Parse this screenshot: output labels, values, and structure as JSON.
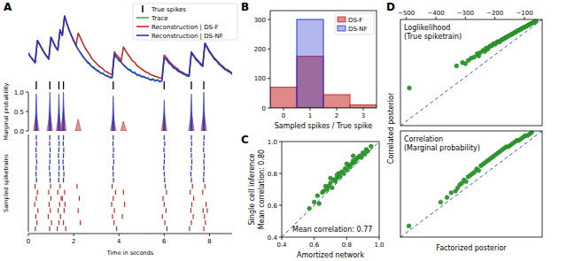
{
  "chart_data": [
    {
      "type": "line",
      "title": "A",
      "x": [
        0,
        0.1,
        0.2,
        0.3,
        0.4,
        0.5,
        0.6,
        0.7,
        0.8,
        0.9,
        1,
        1.1,
        1.2,
        1.3,
        1.4,
        1.5,
        1.6,
        1.7,
        1.8,
        1.9,
        2,
        2.1,
        2.2,
        2.3,
        2.4,
        2.5,
        2.6,
        2.7,
        2.8,
        2.9,
        3,
        3.1,
        3.2,
        3.3,
        3.4,
        3.5,
        3.6,
        3.7,
        3.8,
        3.9,
        4,
        4.1,
        4.2,
        4.3,
        4.4,
        4.5,
        4.6,
        4.7,
        4.8,
        4.9,
        5,
        5.1,
        5.2,
        5.3,
        5.4,
        5.5,
        5.6,
        5.7,
        5.8,
        5.9,
        6,
        6.1,
        6.2,
        6.3,
        6.4,
        6.5,
        6.6,
        6.7,
        6.8,
        6.9,
        7,
        7.1,
        7.2,
        7.3,
        7.4,
        7.5,
        7.6,
        7.7,
        7.8,
        7.9,
        8,
        8.1,
        8.2,
        8.3,
        8.4,
        8.5,
        8.6,
        8.7,
        8.8,
        8.9,
        9
      ],
      "series": [
        {
          "name": "True spikes",
          "color": "#000000",
          "type": "event",
          "x": [
            0.35,
            0.95,
            1.35,
            1.55,
            3.75,
            6.0,
            7.2,
            7.75
          ]
        },
        {
          "name": "Trace",
          "color": "#33bb33",
          "values": [
            0.45,
            0.38,
            0.37,
            0.3,
            0.57,
            0.56,
            0.47,
            0.45,
            0.39,
            0.38,
            0.61,
            0.58,
            0.5,
            0.49,
            0.7,
            0.67,
            0.86,
            0.81,
            0.7,
            0.66,
            0.57,
            0.55,
            0.47,
            0.45,
            0.38,
            0.37,
            0.31,
            0.32,
            0.26,
            0.27,
            0.21,
            0.23,
            0.18,
            0.2,
            0.15,
            0.17,
            0.12,
            0.15,
            0.4,
            0.39,
            0.33,
            0.34,
            0.28,
            0.28,
            0.22,
            0.24,
            0.19,
            0.21,
            0.15,
            0.18,
            0.13,
            0.16,
            0.12,
            0.14,
            0.09,
            0.13,
            0.08,
            0.12,
            0.07,
            0.11,
            0.36,
            0.37,
            0.3,
            0.31,
            0.24,
            0.26,
            0.2,
            0.22,
            0.17,
            0.19,
            0.14,
            0.17,
            0.42,
            0.41,
            0.34,
            0.35,
            0.28,
            0.29,
            0.53,
            0.52,
            0.43,
            0.43,
            0.35,
            0.36,
            0.29,
            0.3,
            0.24,
            0.25,
            0.2,
            0.22,
            0.16
          ]
        },
        {
          "name": "Reconstruction | DS-F",
          "color": "#c62828",
          "values": [
            0.43,
            0.39,
            0.35,
            0.32,
            0.59,
            0.54,
            0.49,
            0.44,
            0.4,
            0.36,
            0.63,
            0.57,
            0.51,
            0.47,
            0.72,
            0.65,
            0.89,
            0.8,
            0.72,
            0.65,
            0.59,
            0.53,
            0.68,
            0.62,
            0.56,
            0.5,
            0.46,
            0.42,
            0.37,
            0.34,
            0.31,
            0.28,
            0.26,
            0.24,
            0.21,
            0.2,
            0.18,
            0.17,
            0.45,
            0.41,
            0.38,
            0.34,
            0.51,
            0.46,
            0.42,
            0.38,
            0.34,
            0.32,
            0.28,
            0.26,
            0.24,
            0.22,
            0.2,
            0.19,
            0.17,
            0.16,
            0.15,
            0.14,
            0.13,
            0.12,
            0.41,
            0.38,
            0.34,
            0.31,
            0.28,
            0.26,
            0.24,
            0.21,
            0.2,
            0.18,
            0.17,
            0.16,
            0.45,
            0.41,
            0.37,
            0.34,
            0.31,
            0.28,
            0.56,
            0.51,
            0.46,
            0.42,
            0.38,
            0.35,
            0.32,
            0.29,
            0.27,
            0.24,
            0.23,
            0.21,
            0.19
          ]
        },
        {
          "name": "Reconstruction | DS-NF",
          "color": "#2233cc",
          "values": [
            0.43,
            0.39,
            0.35,
            0.32,
            0.59,
            0.54,
            0.49,
            0.44,
            0.4,
            0.36,
            0.63,
            0.57,
            0.51,
            0.47,
            0.72,
            0.65,
            0.89,
            0.8,
            0.72,
            0.65,
            0.59,
            0.53,
            0.48,
            0.44,
            0.4,
            0.36,
            0.33,
            0.3,
            0.27,
            0.25,
            0.23,
            0.21,
            0.19,
            0.18,
            0.16,
            0.15,
            0.14,
            0.13,
            0.42,
            0.38,
            0.35,
            0.32,
            0.29,
            0.26,
            0.24,
            0.22,
            0.2,
            0.19,
            0.17,
            0.16,
            0.15,
            0.14,
            0.13,
            0.12,
            0.11,
            0.11,
            0.1,
            0.1,
            0.09,
            0.09,
            0.38,
            0.35,
            0.32,
            0.29,
            0.26,
            0.24,
            0.22,
            0.2,
            0.19,
            0.17,
            0.16,
            0.15,
            0.44,
            0.4,
            0.36,
            0.33,
            0.3,
            0.27,
            0.55,
            0.5,
            0.45,
            0.41,
            0.37,
            0.34,
            0.31,
            0.28,
            0.26,
            0.23,
            0.22,
            0.2,
            0.18
          ]
        }
      ],
      "xlim": [
        0,
        9
      ],
      "ylim": [
        0,
        1
      ],
      "legend": "upper right"
    },
    {
      "type": "area",
      "ylabel": "Marginal probability",
      "series": [
        {
          "name": "DS-F",
          "color": "#c62828",
          "x": [
            0.35,
            0.95,
            1.35,
            1.55,
            2.2,
            3.75,
            4.2,
            6.0,
            7.2,
            7.75
          ],
          "values": [
            0.45,
            0.5,
            0.45,
            0.55,
            0.3,
            0.4,
            0.25,
            0.45,
            0.5,
            0.5
          ]
        },
        {
          "name": "DS-NF",
          "color": "#2233cc",
          "x": [
            0.35,
            0.95,
            1.35,
            1.55,
            3.75,
            6.0,
            7.2,
            7.75
          ],
          "values": [
            0.95,
            1.0,
            0.95,
            1.0,
            0.9,
            0.8,
            0.95,
            1.0
          ]
        }
      ],
      "xlim": [
        0,
        9
      ],
      "ylim": [
        0,
        1
      ],
      "yticks": [
        {
          "value": 0,
          "label": "0.0"
        },
        0.5,
        {
          "value": 1,
          "label": "1.0"
        }
      ]
    },
    {
      "type": "raster",
      "ylabel": "Sampled spiketrains",
      "xlabel": "Time in seconds",
      "series": [
        {
          "name": "DS-NF",
          "color": "#2233cc",
          "rows": [
            [
              0.35,
              0.95,
              1.34,
              1.55,
              3.75,
              6.0,
              7.2,
              7.76
            ],
            [
              0.36,
              0.94,
              1.36,
              1.54,
              3.74,
              6.02,
              7.21,
              7.75
            ],
            [
              0.34,
              0.96,
              1.35,
              1.56,
              3.76,
              5.99,
              7.19,
              7.74
            ],
            [
              0.35,
              0.95,
              1.33,
              1.55,
              3.75,
              6.01,
              7.2,
              7.77
            ],
            [
              0.37,
              0.95,
              1.35,
              1.53,
              3.77,
              6.0,
              7.22,
              7.75
            ],
            [
              0.35,
              0.93,
              1.36,
              1.55,
              3.74,
              5.98,
              7.2,
              7.76
            ],
            [
              0.34,
              0.95,
              1.35,
              1.57,
              3.75,
              6.0,
              7.18,
              7.75
            ],
            [
              0.36,
              0.96,
              1.34,
              1.55,
              3.76,
              6.02,
              7.2,
              7.74
            ]
          ]
        },
        {
          "name": "DS-F",
          "color": "#c62828",
          "rows": [
            [
              0.3,
              0.98,
              1.4,
              2.15,
              3.7,
              6.05,
              7.25,
              7.8
            ],
            [
              0.4,
              0.9,
              1.3,
              1.6,
              3.85,
              4.2,
              6.1,
              7.15,
              7.7
            ],
            [
              0.35,
              1.0,
              1.45,
              1.5,
              2.25,
              3.75,
              5.95,
              7.3
            ],
            [
              0.28,
              0.92,
              1.38,
              1.62,
              3.68,
              4.25,
              6.0,
              7.22,
              7.85
            ],
            [
              0.42,
              0.97,
              1.32,
              1.58,
              2.2,
              3.8,
              6.08,
              7.18,
              7.72,
              7.9
            ],
            [
              0.33,
              0.88,
              1.42,
              3.72,
              4.15,
              5.92,
              7.28,
              7.78
            ],
            [
              0.38,
              1.02,
              1.35,
              1.55,
              2.3,
              3.78,
              6.03,
              7.2,
              7.82
            ],
            [
              0.31,
              0.94,
              1.28,
              1.65,
              3.9,
              6.12,
              7.12,
              7.75
            ]
          ]
        }
      ],
      "xlim": [
        0,
        9
      ],
      "xticks": [
        0,
        2,
        4,
        6,
        8
      ]
    },
    {
      "type": "bar",
      "title": "B",
      "xlabel": "Sampled spikes / True spike",
      "categories": [
        "0",
        "1",
        "2",
        "3"
      ],
      "series": [
        {
          "name": "DS-F",
          "color": "#c62828",
          "values": [
            70,
            175,
            45,
            10
          ]
        },
        {
          "name": "DS-NF",
          "color": "#2233cc",
          "values": [
            0,
            300,
            0,
            0
          ]
        }
      ],
      "ylim": [
        0,
        330
      ],
      "yticks": [
        0,
        100,
        200,
        300
      ],
      "legend": "upper right"
    },
    {
      "type": "scatter",
      "title": "C",
      "xlabel": "Amortized network",
      "ylabel": "Single cell inference",
      "annotations": [
        "Mean correlation: 0.80",
        "Mean correlation: 0.77"
      ],
      "x": [
        0.57,
        0.6,
        0.62,
        0.63,
        0.65,
        0.66,
        0.68,
        0.69,
        0.7,
        0.71,
        0.72,
        0.73,
        0.74,
        0.75,
        0.76,
        0.77,
        0.78,
        0.79,
        0.8,
        0.81,
        0.82,
        0.83,
        0.84,
        0.85,
        0.86,
        0.87,
        0.88,
        0.89,
        0.9,
        0.91,
        0.92,
        0.93,
        0.95,
        0.8,
        0.74,
        0.7,
        0.67,
        0.84
      ],
      "values": [
        0.58,
        0.62,
        0.66,
        0.61,
        0.68,
        0.69,
        0.7,
        0.72,
        0.74,
        0.71,
        0.76,
        0.75,
        0.77,
        0.8,
        0.78,
        0.81,
        0.8,
        0.83,
        0.82,
        0.85,
        0.84,
        0.86,
        0.88,
        0.87,
        0.89,
        0.9,
        0.91,
        0.9,
        0.93,
        0.92,
        0.95,
        0.94,
        0.97,
        0.86,
        0.79,
        0.77,
        0.72,
        0.91
      ],
      "color": "#2ca02c",
      "marker": "circle",
      "xlim": [
        0.4,
        1
      ],
      "ylim": [
        0.4,
        1
      ],
      "xticks": [
        0.4,
        0.6,
        0.8,
        {
          "value": 1,
          "label": "1.0"
        }
      ],
      "yticks": [
        0.4,
        0.6,
        0.8,
        {
          "value": 1,
          "label": "1.0"
        }
      ]
    },
    {
      "type": "scatter",
      "title": "D",
      "ylabel": "Correlated posterior",
      "annotations": [
        "Loglikelihood",
        "(True spiketrain)"
      ],
      "x": [
        -490,
        -330,
        -310,
        -300,
        -290,
        -280,
        -270,
        -260,
        -255,
        -250,
        -240,
        -235,
        -230,
        -225,
        -220,
        -215,
        -210,
        -205,
        -200,
        -195,
        -190,
        -185,
        -180,
        -175,
        -170,
        -165,
        -160,
        -155,
        -150,
        -145,
        -140,
        -135,
        -130,
        -125,
        -120,
        -115,
        -110,
        -105,
        -100,
        -95,
        -90,
        -85,
        -80,
        -75,
        -70,
        -65,
        -60
      ],
      "values": [
        -350,
        -250,
        -235,
        -240,
        -225,
        -215,
        -210,
        -195,
        -205,
        -190,
        -180,
        -185,
        -170,
        -175,
        -165,
        -160,
        -158,
        -150,
        -152,
        -145,
        -140,
        -142,
        -135,
        -130,
        -128,
        -122,
        -120,
        -115,
        -112,
        -108,
        -105,
        -100,
        -98,
        -92,
        -90,
        -86,
        -82,
        -78,
        -75,
        -72,
        -68,
        -64,
        -60,
        -57,
        -54,
        -50,
        -47
      ],
      "color": "#2ca02c",
      "marker": "circle",
      "xlim": [
        -520,
        -40
      ],
      "ylim": [
        -520,
        -40
      ],
      "xticks": [
        {
          "value": -500,
          "label": "−500"
        },
        {
          "value": -400,
          "label": "−400"
        },
        {
          "value": -300,
          "label": "−300"
        },
        {
          "value": -200,
          "label": "−200"
        },
        {
          "value": -100,
          "label": "−100"
        }
      ]
    },
    {
      "type": "scatter",
      "xlabel": "Factorized posterior",
      "annotations": [
        "Correlation",
        "(Marginal probability)"
      ],
      "x": [
        0.37,
        0.52,
        0.55,
        0.57,
        0.59,
        0.6,
        0.61,
        0.62,
        0.63,
        0.64,
        0.65,
        0.66,
        0.67,
        0.68,
        0.69,
        0.7,
        0.71,
        0.72,
        0.73,
        0.74,
        0.75,
        0.76,
        0.77,
        0.78,
        0.79,
        0.8,
        0.81,
        0.82,
        0.83,
        0.84,
        0.85,
        0.86,
        0.87,
        0.88,
        0.89,
        0.9,
        0.91,
        0.92,
        0.93,
        0.94,
        0.95
      ],
      "values": [
        0.4,
        0.55,
        0.58,
        0.61,
        0.62,
        0.64,
        0.66,
        0.67,
        0.69,
        0.68,
        0.71,
        0.72,
        0.73,
        0.74,
        0.76,
        0.75,
        0.78,
        0.79,
        0.8,
        0.81,
        0.82,
        0.83,
        0.84,
        0.85,
        0.86,
        0.87,
        0.88,
        0.89,
        0.9,
        0.9,
        0.91,
        0.92,
        0.93,
        0.94,
        0.94,
        0.95,
        0.96,
        0.97,
        0.97,
        0.98,
        0.99
      ],
      "color": "#2ca02c",
      "marker": "circle",
      "xlim": [
        0.33,
        1
      ],
      "ylim": [
        0.33,
        1
      ]
    }
  ]
}
